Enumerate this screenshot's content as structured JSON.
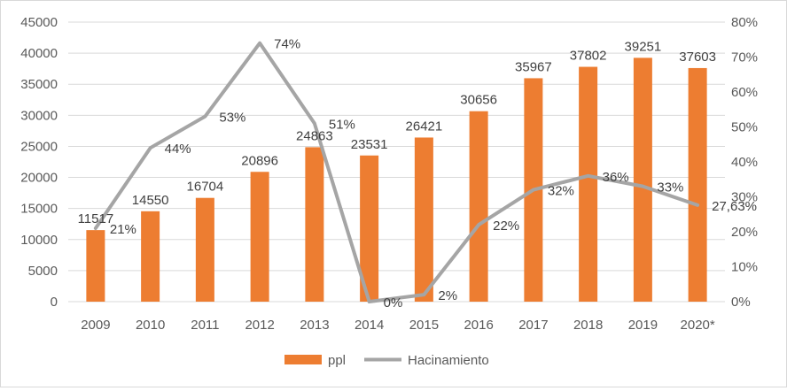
{
  "chart_data": {
    "type": "bar",
    "categories": [
      "2009",
      "2010",
      "2011",
      "2012",
      "2013",
      "2014",
      "2015",
      "2016",
      "2017",
      "2018",
      "2019",
      "2020*"
    ],
    "series": [
      {
        "name": "ppl",
        "type": "bar",
        "axis": "left",
        "color": "#ED7D31",
        "values": [
          11517,
          14550,
          16704,
          20896,
          24863,
          23531,
          26421,
          30656,
          35967,
          37802,
          39251,
          37603
        ],
        "labels": [
          "11517",
          "14550",
          "16704",
          "20896",
          "24863",
          "23531",
          "26421",
          "30656",
          "35967",
          "37802",
          "39251",
          "37603"
        ]
      },
      {
        "name": "Hacinamiento",
        "type": "line",
        "axis": "right",
        "color": "#A5A5A5",
        "values": [
          0.21,
          0.44,
          0.53,
          0.74,
          0.51,
          0.0,
          0.02,
          0.22,
          0.32,
          0.36,
          0.33,
          0.2763
        ],
        "labels": [
          "21%",
          "44%",
          "53%",
          "74%",
          "51%",
          "0%",
          "2%",
          "22%",
          "32%",
          "36%",
          "33%",
          "27,63%"
        ]
      }
    ],
    "ylim_left": [
      0,
      45000
    ],
    "yticks_left": [
      "0",
      "5000",
      "10000",
      "15000",
      "20000",
      "25000",
      "30000",
      "35000",
      "40000",
      "45000"
    ],
    "ylim_right": [
      0,
      0.8
    ],
    "yticks_right": [
      "0%",
      "10%",
      "20%",
      "30%",
      "40%",
      "50%",
      "60%",
      "70%",
      "80%"
    ],
    "grid": true,
    "legend_position": "bottom",
    "legend": [
      "ppl",
      "Hacinamiento"
    ]
  }
}
